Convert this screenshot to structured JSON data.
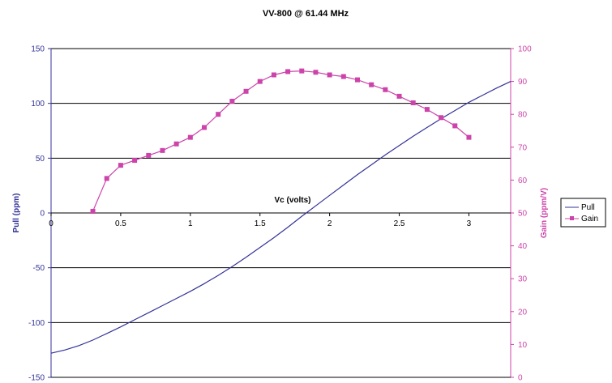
{
  "chart_data": {
    "type": "line",
    "title": "VV-800 @ 61.44 MHz",
    "xlabel": "Vc (volts)",
    "ylabel": "Pull (ppm)",
    "y2label": "Gain (ppm/V)",
    "xlim": [
      0,
      3.3
    ],
    "ylim": [
      -150,
      150
    ],
    "y2lim": [
      0,
      100
    ],
    "x_ticks": [
      "0",
      "0.5",
      "1",
      "1.5",
      "2",
      "2.5",
      "3"
    ],
    "y_ticks": [
      "150",
      "100",
      "50",
      "0",
      "-50",
      "-100",
      "-150"
    ],
    "y2_ticks": [
      "100",
      "90",
      "80",
      "70",
      "60",
      "50",
      "40",
      "30",
      "20",
      "10",
      "0"
    ],
    "grid": "horizontal",
    "legend": "right",
    "colors": {
      "pull": "#333399",
      "gain": "#cc44aa"
    },
    "series": [
      {
        "name": "Pull",
        "axis": "left",
        "marker": "none",
        "x": [
          0,
          0.1,
          0.2,
          0.3,
          0.4,
          0.5,
          0.6,
          0.7,
          0.8,
          0.9,
          1.0,
          1.1,
          1.2,
          1.3,
          1.4,
          1.5,
          1.6,
          1.7,
          1.8,
          1.9,
          2.0,
          2.1,
          2.2,
          2.3,
          2.4,
          2.5,
          2.6,
          2.7,
          2.8,
          2.9,
          3.0,
          3.1,
          3.2,
          3.3
        ],
        "y": [
          -128,
          -125,
          -121,
          -116,
          -110,
          -104,
          -97.5,
          -91,
          -84.5,
          -78,
          -71.5,
          -64.5,
          -57,
          -49,
          -40.5,
          -31.5,
          -22.5,
          -13,
          -3,
          6.5,
          16,
          25.5,
          35,
          44,
          53,
          61.5,
          70,
          78,
          86,
          93.5,
          101,
          107.5,
          114,
          120
        ]
      },
      {
        "name": "Gain",
        "axis": "right",
        "marker": "square",
        "x": [
          0.3,
          0.4,
          0.5,
          0.6,
          0.7,
          0.8,
          0.9,
          1.0,
          1.1,
          1.2,
          1.3,
          1.4,
          1.5,
          1.6,
          1.7,
          1.8,
          1.9,
          2.0,
          2.1,
          2.2,
          2.3,
          2.4,
          2.5,
          2.6,
          2.7,
          2.8,
          2.9,
          3.0
        ],
        "y": [
          50.5,
          60.5,
          64.5,
          66,
          67.5,
          69,
          71,
          73,
          76,
          80,
          84,
          87,
          90,
          92,
          93,
          93.2,
          92.8,
          92,
          91.5,
          90.5,
          89,
          87.5,
          85.5,
          83.5,
          81.5,
          79,
          76.5,
          73
        ]
      }
    ]
  }
}
